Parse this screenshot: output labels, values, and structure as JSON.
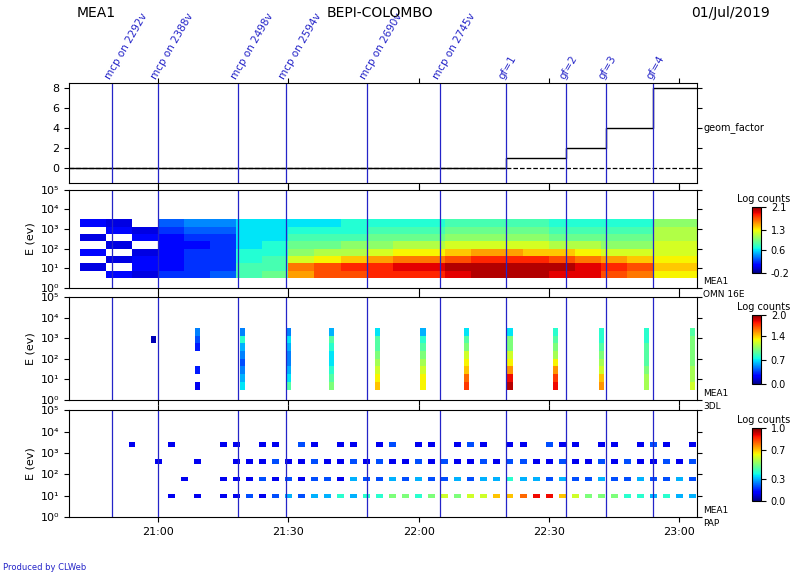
{
  "header": {
    "left": "MEA1",
    "center": "BEPI-COLOMBO",
    "right": "01/Jul/2019"
  },
  "footer": "Produced by CLWeb",
  "markers": [
    {
      "x": 1249.5,
      "label": "mcp on 2292v"
    },
    {
      "x": 1260,
      "label": "mcp on 2388v"
    },
    {
      "x": 1278.5,
      "label": "mcp on 2498v"
    },
    {
      "x": 1289.5,
      "label": "mcp on 2594v"
    },
    {
      "x": 1308,
      "label": "mcp on 2690v"
    },
    {
      "x": 1325,
      "label": "mcp on 2745v"
    },
    {
      "x": 1340,
      "label": "gf=1"
    },
    {
      "x": 1354,
      "label": "gf=2"
    },
    {
      "x": 1363,
      "label": "gf=3"
    },
    {
      "x": 1374,
      "label": "gf=4"
    }
  ],
  "chart_data": [
    {
      "type": "line",
      "color": "#000000",
      "x": [
        1239.5,
        1340,
        1354,
        1363,
        1374,
        1384
      ],
      "values": [
        0,
        1,
        2,
        4,
        8,
        8
      ],
      "hline": 0,
      "right_labels": [
        "geom_factor"
      ],
      "xlim": [
        1239.5,
        1384
      ],
      "xticks": [
        {
          "value": 1260,
          "label": "21:00"
        },
        {
          "value": 1290,
          "label": "21:30"
        },
        {
          "value": 1320,
          "label": "22:00"
        },
        {
          "value": 1350,
          "label": "22:30"
        },
        {
          "value": 1380,
          "label": "23:00"
        }
      ],
      "ylim": [
        -1.5,
        8.5
      ],
      "yticks": [
        0,
        2,
        4,
        6,
        8
      ],
      "tick_labels": "y"
    },
    {
      "type": "heatmap",
      "ylabel": "E (ev)",
      "right_labels": [
        "MEA1",
        "OMN 16E"
      ],
      "log": "y",
      "xlim": [
        1239.5,
        1384
      ],
      "xticks": [
        {
          "value": 1260,
          "label": "21:00"
        },
        {
          "value": 1290,
          "label": "21:30"
        },
        {
          "value": 1320,
          "label": "22:00"
        },
        {
          "value": 1350,
          "label": "22:30"
        },
        {
          "value": 1380,
          "label": "23:00"
        }
      ],
      "ylim": [
        1,
        100000
      ],
      "yticks": [
        {
          "value": 1,
          "label": "10⁰"
        },
        {
          "value": 10,
          "label": "10¹"
        },
        {
          "value": 100,
          "label": "10²"
        },
        {
          "value": 1000,
          "label": "10³"
        },
        {
          "value": 10000,
          "label": "10⁴"
        },
        {
          "value": 100000,
          "label": "10⁵"
        }
      ],
      "tick_labels": "y",
      "time_edges": [
        1242,
        1248,
        1254,
        1260,
        1266,
        1272,
        1278,
        1284,
        1290,
        1296,
        1302,
        1308,
        1314,
        1320,
        1326,
        1332,
        1338,
        1344,
        1350,
        1356,
        1362,
        1368,
        1374,
        1380,
        1384
      ],
      "energy_edges": [
        3.16,
        7.5,
        17.8,
        42.2,
        100,
        237,
        562,
        1334,
        3162
      ],
      "cells": [
        [
          null,
          0.1,
          0.0,
          0.2,
          0.2,
          0.3,
          0.8,
          0.9,
          1.5,
          1.7,
          1.7,
          1.8,
          1.8,
          1.8,
          1.9,
          2.0,
          2.0,
          2.0,
          1.9,
          1.9,
          1.7,
          1.6,
          1.3,
          1.3
        ],
        [
          0.0,
          null,
          0.1,
          0.1,
          0.2,
          0.2,
          0.8,
          0.8,
          1.6,
          1.7,
          1.8,
          1.8,
          1.9,
          1.9,
          2.0,
          2.0,
          2.0,
          2.0,
          2.0,
          1.9,
          1.8,
          1.7,
          1.4,
          1.4
        ],
        [
          null,
          0.0,
          0.1,
          0.1,
          0.2,
          0.2,
          0.7,
          0.8,
          1.2,
          1.3,
          1.4,
          1.5,
          1.6,
          1.6,
          1.7,
          1.8,
          1.8,
          1.8,
          1.7,
          1.6,
          1.5,
          1.4,
          1.3,
          1.3
        ],
        [
          0.1,
          null,
          0.0,
          0.1,
          0.2,
          0.2,
          0.7,
          0.7,
          1.0,
          1.1,
          1.1,
          1.2,
          1.3,
          1.3,
          1.4,
          1.5,
          1.5,
          1.4,
          1.4,
          1.3,
          1.2,
          1.2,
          1.2,
          1.2
        ],
        [
          null,
          0.0,
          null,
          0.1,
          0.1,
          0.2,
          0.6,
          0.7,
          0.9,
          0.9,
          1.0,
          1.0,
          1.1,
          1.1,
          1.2,
          1.2,
          1.2,
          1.2,
          1.1,
          1.1,
          1.0,
          1.0,
          1.2,
          1.2
        ],
        [
          0.0,
          null,
          0.1,
          0.1,
          0.2,
          0.2,
          0.6,
          0.6,
          0.8,
          0.8,
          0.8,
          0.9,
          0.9,
          0.9,
          1.0,
          1.0,
          1.0,
          1.0,
          0.9,
          0.9,
          0.9,
          0.9,
          1.1,
          1.1
        ],
        [
          null,
          0.1,
          0.0,
          0.2,
          0.3,
          0.3,
          0.6,
          0.6,
          0.7,
          0.7,
          0.7,
          0.8,
          0.8,
          0.8,
          0.9,
          0.9,
          0.9,
          0.9,
          0.8,
          0.8,
          0.8,
          0.8,
          1.1,
          1.1
        ],
        [
          0.1,
          0.0,
          null,
          0.3,
          0.4,
          0.4,
          0.6,
          0.6,
          0.6,
          0.6,
          0.7,
          0.7,
          0.7,
          0.7,
          0.8,
          0.8,
          0.8,
          0.8,
          0.7,
          0.7,
          0.7,
          0.7,
          1.0,
          1.0
        ]
      ],
      "colorbar": {
        "label": "Log counts",
        "range": [
          -0.2,
          2.1
        ],
        "ticks": [
          -0.2,
          0.6,
          1.3,
          2.1
        ]
      }
    },
    {
      "type": "heatmap_columns",
      "ylabel": "E (ev)",
      "right_labels": [
        "MEA1",
        "3DL"
      ],
      "log": "y",
      "xlim": [
        1239.5,
        1384
      ],
      "xticks": [
        {
          "value": 1260,
          "label": "21:00"
        },
        {
          "value": 1290,
          "label": "21:30"
        },
        {
          "value": 1320,
          "label": "22:00"
        },
        {
          "value": 1350,
          "label": "22:30"
        },
        {
          "value": 1380,
          "label": "23:00"
        }
      ],
      "ylim": [
        1,
        100000
      ],
      "yticks": [
        {
          "value": 1,
          "label": "10⁰"
        },
        {
          "value": 10,
          "label": "10¹"
        },
        {
          "value": 100,
          "label": "10²"
        },
        {
          "value": 1000,
          "label": "10³"
        },
        {
          "value": 10000,
          "label": "10⁴"
        },
        {
          "value": 100000,
          "label": "10⁵"
        }
      ],
      "tick_labels": "y",
      "energy_edges": [
        3.16,
        7.5,
        17.8,
        42.2,
        100,
        237,
        562,
        1334,
        3162
      ],
      "columns": [
        {
          "t0": 1258.4,
          "t1": 1259.6,
          "values": [
            null,
            null,
            null,
            null,
            null,
            null,
            0.1,
            null
          ]
        },
        {
          "t0": 1268.4,
          "t1": 1269.6,
          "values": [
            0.2,
            null,
            0.3,
            null,
            null,
            0.3,
            0.4,
            0.5
          ]
        },
        {
          "t0": 1278.9,
          "t1": 1280.1,
          "values": [
            0.7,
            0.6,
            0.5,
            0.4,
            0.5,
            0.6,
            0.8,
            0.5
          ]
        },
        {
          "t0": 1289.4,
          "t1": 1290.6,
          "values": [
            0.9,
            0.7,
            0.6,
            0.5,
            0.5,
            0.6,
            0.7,
            0.5
          ]
        },
        {
          "t0": 1299.4,
          "t1": 1300.6,
          "values": [
            1.0,
            0.9,
            0.8,
            0.7,
            0.7,
            0.8,
            0.9,
            0.6
          ]
        },
        {
          "t0": 1309.9,
          "t1": 1311.1,
          "values": [
            1.4,
            1.3,
            1.2,
            1.1,
            1.0,
            0.9,
            0.9,
            0.7
          ]
        },
        {
          "t0": 1320.4,
          "t1": 1321.6,
          "values": [
            1.3,
            1.3,
            1.2,
            1.1,
            1.0,
            0.9,
            0.8,
            0.6
          ]
        },
        {
          "t0": 1330.4,
          "t1": 1331.6,
          "values": [
            1.7,
            1.6,
            1.4,
            1.3,
            1.2,
            1.0,
            0.9,
            0.7
          ]
        },
        {
          "t0": 1340.4,
          "t1": 1341.6,
          "values": [
            1.9,
            1.8,
            1.5,
            1.3,
            1.2,
            1.0,
            1.0,
            0.7
          ]
        },
        {
          "t0": 1350.9,
          "t1": 1352.1,
          "values": [
            1.8,
            1.7,
            1.5,
            1.3,
            1.1,
            1.0,
            0.9,
            0.8
          ]
        },
        {
          "t0": 1361.4,
          "t1": 1362.6,
          "values": [
            1.5,
            1.4,
            1.2,
            1.1,
            1.0,
            0.9,
            0.8,
            0.8
          ]
        },
        {
          "t0": 1371.9,
          "t1": 1373.1,
          "values": [
            1.1,
            1.1,
            1.0,
            0.9,
            0.9,
            0.9,
            0.8,
            0.8
          ]
        },
        {
          "t0": 1382.4,
          "t1": 1383.6,
          "values": [
            1.2,
            1.1,
            1.1,
            1.0,
            1.0,
            1.0,
            1.0,
            0.9
          ]
        }
      ],
      "colorbar": {
        "label": "Log counts",
        "range": [
          0.0,
          2.0
        ],
        "ticks": [
          0.0,
          0.7,
          1.4,
          2.0
        ]
      }
    },
    {
      "type": "heatmap_rows",
      "ylabel": "E (ev)",
      "right_labels": [
        "MEA1",
        "PAP"
      ],
      "log": "y",
      "xlim": [
        1239.5,
        1384
      ],
      "xticks": [
        {
          "value": 1260,
          "label": "21:00"
        },
        {
          "value": 1290,
          "label": "21:30"
        },
        {
          "value": 1320,
          "label": "22:00"
        },
        {
          "value": 1350,
          "label": "22:30"
        },
        {
          "value": 1380,
          "label": "23:00"
        }
      ],
      "ylim": [
        1,
        100000
      ],
      "yticks": [
        {
          "value": 1,
          "label": "10⁰"
        },
        {
          "value": 10,
          "label": "10¹"
        },
        {
          "value": 100,
          "label": "10²"
        },
        {
          "value": 1000,
          "label": "10³"
        },
        {
          "value": 10000,
          "label": "10⁴"
        },
        {
          "value": 100000,
          "label": "10⁵"
        }
      ],
      "times": [
        1251,
        1254,
        1257,
        1260,
        1263,
        1266,
        1269,
        1272,
        1275,
        1278,
        1281,
        1284,
        1287,
        1290,
        1293,
        1296,
        1299,
        1302,
        1305,
        1308,
        1311,
        1314,
        1317,
        1320,
        1323,
        1326,
        1329,
        1332,
        1335,
        1338,
        1341,
        1344,
        1347,
        1350,
        1353,
        1356,
        1359,
        1362,
        1365,
        1368,
        1371,
        1374,
        1377,
        1380,
        1383
      ],
      "cell_width": 1.6,
      "rows": [
        {
          "energy_range": [
            8,
            12.5
          ],
          "values": [
            null,
            null,
            null,
            null,
            0.1,
            null,
            0.1,
            null,
            0.1,
            0.1,
            0.2,
            0.1,
            0.2,
            0.3,
            0.2,
            0.3,
            0.3,
            0.4,
            0.3,
            0.4,
            0.4,
            0.5,
            0.5,
            0.4,
            0.5,
            0.6,
            0.5,
            0.6,
            0.6,
            0.7,
            0.7,
            0.8,
            0.9,
            0.9,
            0.7,
            0.6,
            0.5,
            0.5,
            0.5,
            0.4,
            0.4,
            0.3,
            0.4,
            0.3,
            0.3
          ]
        },
        {
          "energy_range": [
            48,
            75
          ],
          "values": [
            null,
            null,
            null,
            null,
            null,
            0.1,
            null,
            null,
            0.1,
            0.1,
            0.1,
            0.2,
            0.1,
            0.2,
            0.1,
            0.2,
            0.2,
            0.1,
            0.3,
            0.2,
            0.2,
            0.3,
            0.2,
            0.3,
            0.2,
            0.2,
            0.3,
            0.2,
            0.3,
            0.3,
            0.4,
            0.3,
            0.3,
            0.2,
            0.3,
            0.2,
            0.2,
            0.3,
            0.2,
            0.2,
            0.3,
            0.2,
            0.2,
            0.3,
            0.2
          ]
        },
        {
          "energy_range": [
            320,
            500
          ],
          "values": [
            null,
            null,
            null,
            0.1,
            null,
            null,
            0.1,
            null,
            null,
            0.1,
            0.1,
            0.1,
            0.2,
            0.1,
            0.1,
            0.2,
            0.1,
            0.1,
            0.2,
            0.1,
            0.2,
            0.1,
            0.1,
            0.2,
            0.1,
            0.2,
            0.1,
            0.1,
            0.2,
            0.1,
            0.2,
            0.2,
            0.1,
            0.1,
            0.2,
            0.1,
            0.1,
            0.2,
            0.1,
            0.2,
            0.1,
            0.1,
            0.2,
            0.1,
            0.2
          ]
        },
        {
          "energy_range": [
            2000,
            3100
          ],
          "values": [
            null,
            0.1,
            null,
            null,
            0.1,
            null,
            null,
            null,
            0.1,
            0.1,
            null,
            0.1,
            0.1,
            null,
            0.2,
            0.1,
            null,
            0.1,
            0.1,
            null,
            0.1,
            0.2,
            null,
            0.1,
            0.1,
            null,
            0.1,
            0.2,
            0.1,
            null,
            0.1,
            0.1,
            null,
            0.2,
            0.1,
            0.1,
            null,
            0.1,
            0.1,
            null,
            0.1,
            0.2,
            0.1,
            null,
            0.1
          ]
        }
      ],
      "colorbar": {
        "label": "Log counts",
        "range": [
          0.0,
          1.0
        ],
        "ticks": [
          0.0,
          0.3,
          0.7,
          1.0
        ]
      }
    }
  ]
}
